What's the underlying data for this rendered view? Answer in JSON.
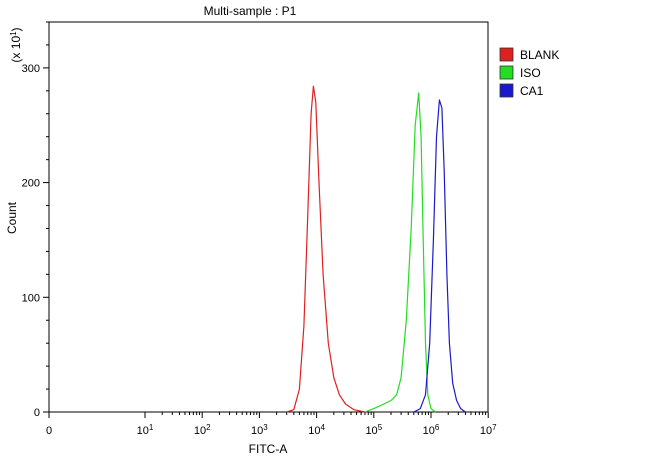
{
  "chart_data": {
    "type": "line",
    "title": "Multi-sample : P1",
    "xlabel": "FITC-A",
    "ylabel": "Count",
    "y_multiplier": {
      "base": "(x 10",
      "exp": "1",
      "close": ")"
    },
    "x_scale": "log",
    "xlim": [
      0,
      10000000
    ],
    "ylim": [
      0,
      340
    ],
    "x_ticks": [
      {
        "value": 0,
        "base": "0",
        "exp": ""
      },
      {
        "value": 10,
        "base": "10",
        "exp": "1"
      },
      {
        "value": 100,
        "base": "10",
        "exp": "2"
      },
      {
        "value": 1000,
        "base": "10",
        "exp": "3"
      },
      {
        "value": 10000,
        "base": "10",
        "exp": "4"
      },
      {
        "value": 100000,
        "base": "10",
        "exp": "5"
      },
      {
        "value": 1000000,
        "base": "10",
        "exp": "6"
      },
      {
        "value": 10000000,
        "base": "10",
        "exp": "7"
      }
    ],
    "y_ticks": [
      {
        "value": 0,
        "label": "0"
      },
      {
        "value": 100,
        "label": "100"
      },
      {
        "value": 200,
        "label": "200"
      },
      {
        "value": 300,
        "label": "300"
      }
    ],
    "grid": false,
    "legend_position": "top-right",
    "series": [
      {
        "name": "BLANK",
        "color": "#e02020",
        "points": [
          [
            3000,
            0
          ],
          [
            4000,
            2
          ],
          [
            5000,
            20
          ],
          [
            6000,
            75
          ],
          [
            7000,
            170
          ],
          [
            8000,
            260
          ],
          [
            8800,
            284
          ],
          [
            9700,
            270
          ],
          [
            11000,
            200
          ],
          [
            13000,
            120
          ],
          [
            16000,
            60
          ],
          [
            20000,
            30
          ],
          [
            25000,
            15
          ],
          [
            32000,
            7
          ],
          [
            45000,
            2
          ],
          [
            70000,
            0
          ]
        ]
      },
      {
        "name": "ISO",
        "color": "#22dd22",
        "points": [
          [
            70000,
            0
          ],
          [
            100000,
            3
          ],
          [
            150000,
            7
          ],
          [
            200000,
            10
          ],
          [
            250000,
            15
          ],
          [
            300000,
            30
          ],
          [
            370000,
            80
          ],
          [
            450000,
            160
          ],
          [
            530000,
            250
          ],
          [
            610000,
            278
          ],
          [
            670000,
            240
          ],
          [
            730000,
            150
          ],
          [
            800000,
            60
          ],
          [
            880000,
            15
          ],
          [
            1000000,
            3
          ],
          [
            1200000,
            0
          ]
        ]
      },
      {
        "name": "CA1",
        "color": "#1a1acc",
        "points": [
          [
            500000,
            0
          ],
          [
            650000,
            3
          ],
          [
            800000,
            15
          ],
          [
            950000,
            60
          ],
          [
            1100000,
            150
          ],
          [
            1250000,
            240
          ],
          [
            1400000,
            272
          ],
          [
            1550000,
            265
          ],
          [
            1700000,
            210
          ],
          [
            1900000,
            120
          ],
          [
            2100000,
            60
          ],
          [
            2400000,
            25
          ],
          [
            2800000,
            10
          ],
          [
            3300000,
            3
          ],
          [
            4000000,
            0
          ]
        ]
      }
    ]
  }
}
